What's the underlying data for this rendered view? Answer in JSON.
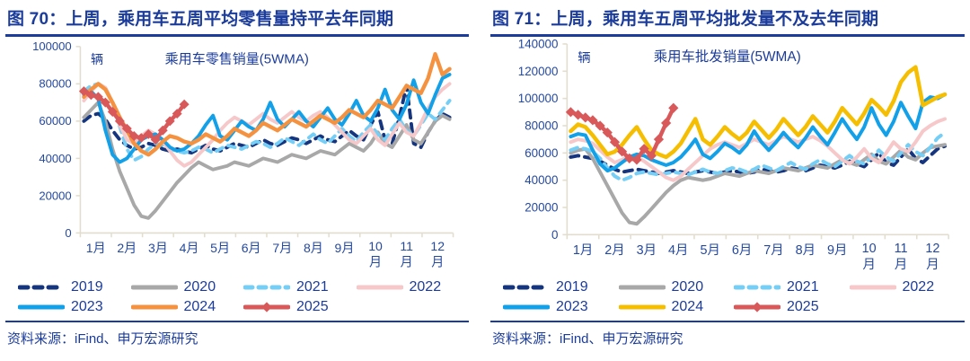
{
  "chart_data": [
    {
      "type": "line",
      "figure_label": "图 70：上周，乘用车五周平均零售量持平去年同期",
      "title": "乘用车零售销量(5WMA)",
      "unit": "辆",
      "source": "资料来源：iFind、申万宏源研究",
      "x_months": [
        "1月",
        "2月",
        "3月",
        "4月",
        "5月",
        "6月",
        "7月",
        "8月",
        "9月",
        "10月",
        "11月",
        "12月"
      ],
      "weeks_per_year": 52,
      "ylim": [
        0,
        100000
      ],
      "ystep": 20000,
      "legend_position": "bottom",
      "grid": false,
      "series": [
        {
          "name": "2019",
          "color": "#15357f",
          "dash": "9 7",
          "width": 4,
          "marker": "none",
          "values": [
            60000,
            63000,
            64000,
            61000,
            55000,
            50000,
            47000,
            45000,
            46000,
            48000,
            47000,
            45000,
            44000,
            45000,
            44000,
            43000,
            45000,
            47000,
            45000,
            44000,
            46000,
            48000,
            47000,
            46000,
            48000,
            50000,
            48000,
            47000,
            49000,
            51000,
            50000,
            48000,
            50000,
            52000,
            50000,
            49000,
            52000,
            55000,
            52000,
            50000,
            58000,
            65000,
            50000,
            48000,
            62000,
            79000,
            48000,
            46000,
            54000,
            60000,
            64000,
            62000
          ]
        },
        {
          "name": "2020",
          "color": "#a8a8a8",
          "dash": "",
          "width": 4,
          "marker": "none",
          "values": [
            62000,
            66000,
            70000,
            60000,
            45000,
            33000,
            24000,
            15000,
            9000,
            8000,
            12000,
            17000,
            22000,
            27000,
            31000,
            35000,
            38000,
            36000,
            34000,
            35000,
            36000,
            38000,
            37000,
            36000,
            38000,
            40000,
            39000,
            38000,
            40000,
            42000,
            41000,
            40000,
            42000,
            44000,
            43000,
            42000,
            45000,
            48000,
            46000,
            44000,
            48000,
            54000,
            48000,
            46000,
            52000,
            58000,
            50000,
            48000,
            54000,
            60000,
            63000,
            61000
          ]
        },
        {
          "name": "2021",
          "color": "#74cef5",
          "dash": "8 7",
          "width": 4,
          "marker": "none",
          "values": [
            76000,
            79000,
            80000,
            78000,
            70000,
            57000,
            45000,
            39000,
            41000,
            45000,
            48000,
            47000,
            45000,
            44000,
            43000,
            44000,
            46000,
            45000,
            43000,
            45000,
            47000,
            46000,
            45000,
            47000,
            49000,
            48000,
            46000,
            48000,
            51000,
            49000,
            47000,
            50000,
            53000,
            50000,
            48000,
            52000,
            56000,
            52000,
            49000,
            54000,
            58000,
            53000,
            50000,
            56000,
            61000,
            55000,
            52000,
            58000,
            64000,
            61000,
            66000,
            71000
          ]
        },
        {
          "name": "2022",
          "color": "#f6c8ca",
          "dash": "",
          "width": 4,
          "marker": "none",
          "values": [
            71000,
            76000,
            80000,
            78000,
            70000,
            58000,
            50000,
            48000,
            52000,
            55000,
            53000,
            49000,
            44000,
            39000,
            36000,
            38000,
            42000,
            46000,
            50000,
            55000,
            59000,
            62000,
            60000,
            58000,
            61000,
            64000,
            61000,
            59000,
            62000,
            65000,
            62000,
            60000,
            63000,
            65000,
            62000,
            58000,
            54000,
            50000,
            48000,
            52000,
            56000,
            50000,
            47000,
            53000,
            59000,
            54000,
            52000,
            59000,
            67000,
            73000,
            77000,
            80000
          ]
        },
        {
          "name": "2023",
          "color": "#12a0e8",
          "dash": "",
          "width": 4,
          "marker": "none",
          "values": [
            74000,
            76000,
            72000,
            55000,
            42000,
            38000,
            40000,
            45000,
            50000,
            52000,
            53000,
            50000,
            46000,
            44000,
            45000,
            48000,
            52000,
            58000,
            63000,
            52000,
            50000,
            55000,
            60000,
            57000,
            55000,
            61000,
            70000,
            61000,
            57000,
            61000,
            65000,
            60000,
            57000,
            62000,
            67000,
            61000,
            58000,
            64000,
            71000,
            63000,
            60000,
            67000,
            77000,
            66000,
            61000,
            69000,
            82000,
            70000,
            64000,
            74000,
            83000,
            85000
          ]
        },
        {
          "name": "2024",
          "color": "#f59240",
          "dash": "",
          "width": 4.5,
          "marker": "none",
          "values": [
            73000,
            77000,
            80000,
            77000,
            70000,
            62000,
            55000,
            48000,
            44000,
            42000,
            45000,
            49000,
            52000,
            51000,
            49000,
            48000,
            50000,
            53000,
            51000,
            49000,
            52000,
            56000,
            54000,
            52000,
            55000,
            59000,
            57000,
            55000,
            58000,
            61000,
            59000,
            57000,
            60000,
            63000,
            61000,
            59000,
            62000,
            66000,
            64000,
            62000,
            66000,
            71000,
            69000,
            67000,
            73000,
            79000,
            77000,
            75000,
            83000,
            96000,
            85000,
            88000
          ]
        },
        {
          "name": "2025",
          "color": "#d9585a",
          "dash": "",
          "width": 4.5,
          "marker": "diamond",
          "values": [
            76000,
            74000,
            73000,
            70000,
            65000,
            60000,
            56000,
            52000,
            51000,
            53000,
            50000,
            55000,
            60000,
            64000,
            69000
          ]
        }
      ]
    },
    {
      "type": "line",
      "figure_label": "图 71：上周，乘用车五周平均批发量不及去年同期",
      "title": "乘用车批发销量(5WMA)",
      "unit": "辆",
      "source": "资料来源：iFind、申万宏源研究",
      "x_months": [
        "1月",
        "2月",
        "3月",
        "4月",
        "5月",
        "6月",
        "7月",
        "8月",
        "9月",
        "10月",
        "11月",
        "12月"
      ],
      "weeks_per_year": 52,
      "ylim": [
        0,
        140000
      ],
      "ystep": 20000,
      "legend_position": "bottom",
      "grid": false,
      "series": [
        {
          "name": "2019",
          "color": "#15357f",
          "dash": "9 7",
          "width": 4,
          "marker": "none",
          "values": [
            57000,
            58000,
            57000,
            56000,
            54000,
            51000,
            48000,
            46000,
            47000,
            48000,
            47000,
            46000,
            45000,
            46000,
            47000,
            46000,
            45000,
            46000,
            47000,
            46000,
            45000,
            46000,
            47000,
            46000,
            45000,
            46000,
            48000,
            47000,
            46000,
            47000,
            49000,
            48000,
            47000,
            49000,
            51000,
            50000,
            49000,
            51000,
            54000,
            52000,
            50000,
            55000,
            60000,
            53000,
            51000,
            57000,
            63000,
            56000,
            53000,
            58000,
            63000,
            65000
          ]
        },
        {
          "name": "2020",
          "color": "#a8a8a8",
          "dash": "",
          "width": 4,
          "marker": "none",
          "values": [
            60000,
            62000,
            63000,
            56000,
            46000,
            36000,
            26000,
            16000,
            9000,
            8000,
            13000,
            19000,
            25000,
            31000,
            36000,
            40000,
            42000,
            41000,
            40000,
            41000,
            43000,
            45000,
            44000,
            43000,
            45000,
            47000,
            46000,
            45000,
            47000,
            49000,
            48000,
            47000,
            49000,
            51000,
            50000,
            49000,
            52000,
            55000,
            53000,
            51000,
            55000,
            59000,
            54000,
            52000,
            57000,
            62000,
            57000,
            55000,
            60000,
            64000,
            65000,
            66000
          ]
        },
        {
          "name": "2021",
          "color": "#74cef5",
          "dash": "8 7",
          "width": 4,
          "marker": "none",
          "values": [
            62000,
            64000,
            63000,
            61000,
            56000,
            49000,
            43000,
            40000,
            42000,
            45000,
            46000,
            45000,
            44000,
            45000,
            46000,
            45000,
            44000,
            46000,
            48000,
            46000,
            45000,
            47000,
            49000,
            48000,
            46000,
            48000,
            51000,
            49000,
            47000,
            50000,
            53000,
            50000,
            48000,
            52000,
            55000,
            52000,
            50000,
            54000,
            58000,
            54000,
            52000,
            57000,
            62000,
            57000,
            54000,
            60000,
            66000,
            61000,
            58000,
            64000,
            71000,
            75000
          ]
        },
        {
          "name": "2022",
          "color": "#f6c8ca",
          "dash": "",
          "width": 4,
          "marker": "none",
          "values": [
            68000,
            70000,
            69000,
            67000,
            62000,
            57000,
            53000,
            55000,
            58000,
            57000,
            54000,
            50000,
            46000,
            42000,
            40000,
            43000,
            48000,
            53000,
            58000,
            63000,
            66000,
            68000,
            66000,
            64000,
            67000,
            70000,
            68000,
            66000,
            69000,
            72000,
            70000,
            68000,
            70000,
            72000,
            69000,
            65000,
            60000,
            55000,
            52000,
            57000,
            63000,
            56000,
            53000,
            60000,
            68000,
            63000,
            61000,
            68000,
            76000,
            80000,
            83000,
            85000
          ]
        },
        {
          "name": "2023",
          "color": "#12a0e8",
          "dash": "",
          "width": 4,
          "marker": "none",
          "values": [
            72000,
            74000,
            73000,
            62000,
            52000,
            47000,
            49000,
            53000,
            57000,
            59000,
            58000,
            55000,
            53000,
            51000,
            53000,
            57000,
            63000,
            70000,
            59000,
            56000,
            61000,
            67000,
            64000,
            60000,
            66000,
            76000,
            68000,
            62000,
            68000,
            75000,
            69000,
            64000,
            71000,
            79000,
            72000,
            66000,
            75000,
            85000,
            77000,
            70000,
            79000,
            93000,
            81000,
            73000,
            83000,
            97000,
            87000,
            78000,
            97000,
            101000,
            100000,
            103000
          ]
        },
        {
          "name": "2024",
          "color": "#f5be00",
          "dash": "",
          "width": 4.5,
          "marker": "none",
          "values": [
            76000,
            81000,
            79000,
            73000,
            66000,
            59000,
            61000,
            66000,
            73000,
            79000,
            70000,
            62000,
            59000,
            57000,
            61000,
            67000,
            76000,
            85000,
            70000,
            66000,
            72000,
            79000,
            74000,
            70000,
            75000,
            83000,
            77000,
            71000,
            77000,
            85000,
            79000,
            73000,
            79000,
            87000,
            81000,
            75000,
            83000,
            93000,
            87000,
            81000,
            89000,
            99000,
            94000,
            88000,
            98000,
            112000,
            119000,
            123000,
            95000,
            98000,
            101000,
            103000
          ]
        },
        {
          "name": "2025",
          "color": "#d9585a",
          "dash": "",
          "width": 4.5,
          "marker": "diamond",
          "values": [
            90000,
            88000,
            86000,
            84000,
            80000,
            75000,
            68000,
            61000,
            56000,
            55000,
            63000,
            58000,
            70000,
            82000,
            93000
          ]
        }
      ]
    }
  ],
  "style": {
    "title_color": "#1b3c9b",
    "axis_color": "#e2decf",
    "tick_label_color": "#2449a0"
  }
}
